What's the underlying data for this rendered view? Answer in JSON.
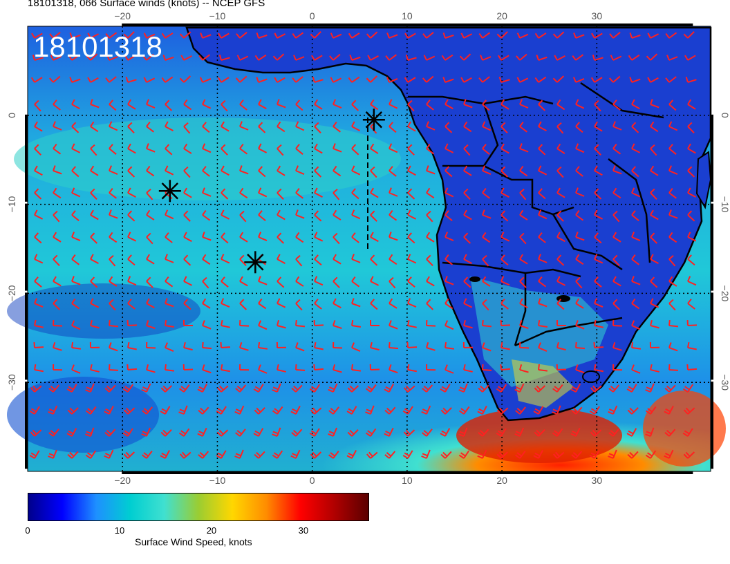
{
  "title": "18101318, 066 Surface winds (knots) -- NCEP GFS",
  "stamp": "18101318",
  "map": {
    "lon_range": [
      -30,
      42
    ],
    "lat_range": [
      -40,
      10
    ],
    "lon_ticks": [
      -20,
      -10,
      0,
      10,
      20,
      30
    ],
    "lat_ticks": [
      0,
      -10,
      -20,
      -30
    ],
    "lon_tick_labels": [
      "−20",
      "−10",
      "0",
      "10",
      "20",
      "30"
    ],
    "lat_tick_labels": [
      "0",
      "−10",
      "−20",
      "−30"
    ],
    "barb_color": "#ff2020",
    "storm_markers": [
      {
        "lon": -15,
        "lat": -8.5
      },
      {
        "lon": -6,
        "lat": -16.5
      },
      {
        "lon": 6.5,
        "lat": -0.5
      }
    ]
  },
  "colorbar": {
    "caption": "Surface Wind Speed, knots",
    "ticks": [
      "0",
      "10",
      "20",
      "30"
    ],
    "range": [
      0,
      37
    ],
    "colors": [
      "#00008b",
      "#0000ff",
      "#1e90ff",
      "#00ced1",
      "#40e0d0",
      "#9acd32",
      "#ffd700",
      "#ff8c00",
      "#ff0000",
      "#b00000",
      "#5a0000"
    ]
  }
}
